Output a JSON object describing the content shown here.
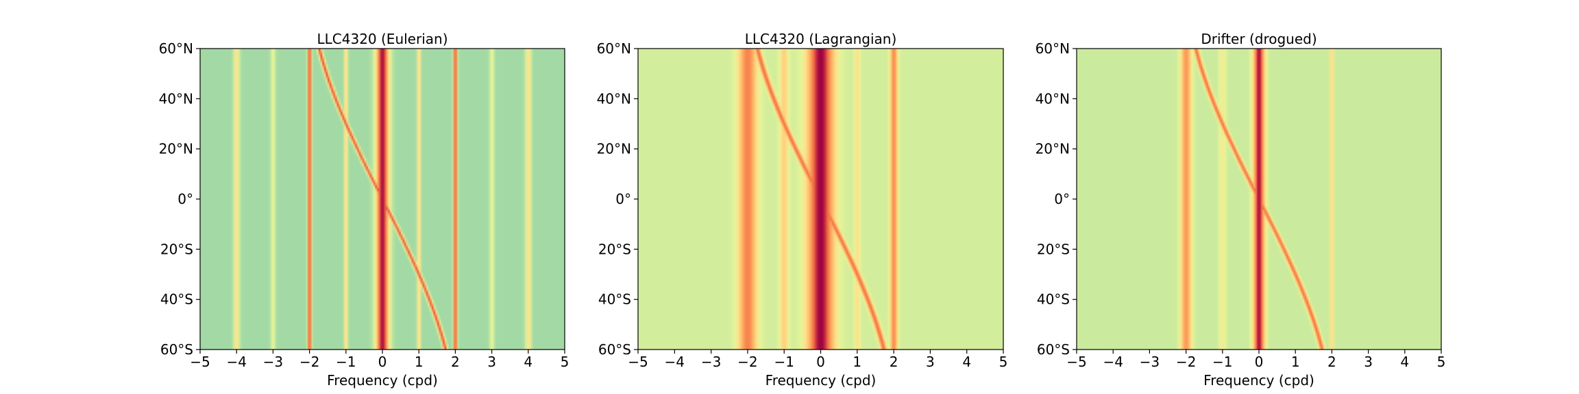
{
  "chart_data": [
    {
      "type": "heatmap",
      "title": "LLC4320 (Eulerian)",
      "xlabel": "Frequency (cpd)",
      "ylabel": "",
      "xlim": [
        -5,
        5
      ],
      "ylim": [
        -60,
        60
      ],
      "x_ticks": [
        -5,
        -4,
        -3,
        -2,
        -1,
        0,
        1,
        2,
        3,
        4,
        5
      ],
      "x_tick_labels": [
        "−5",
        "−4",
        "−3",
        "−2",
        "−1",
        "0",
        "1",
        "2",
        "3",
        "4",
        "5"
      ],
      "y_ticks": [
        60,
        40,
        20,
        0,
        -20,
        -40,
        -60
      ],
      "y_tick_labels": [
        "60°N",
        "40°N",
        "20°N",
        "0°",
        "20°S",
        "40°S",
        "60°S"
      ],
      "colormap": "Spectral_r",
      "background_level": 0.28,
      "ridges": [
        {
          "kind": "vertical",
          "x": 0,
          "width": 0.18,
          "level": 0.98
        },
        {
          "kind": "vertical",
          "x": -2,
          "width": 0.05,
          "level": 0.95
        },
        {
          "kind": "vertical",
          "x": 2,
          "width": 0.05,
          "level": 0.95
        },
        {
          "kind": "vertical",
          "x": -1,
          "width": 0.05,
          "level": 0.6
        },
        {
          "kind": "vertical",
          "x": 1,
          "width": 0.05,
          "level": 0.6
        },
        {
          "kind": "vertical",
          "x": -4,
          "width": 0.08,
          "level": 0.55
        },
        {
          "kind": "vertical",
          "x": 4,
          "width": 0.08,
          "level": 0.55
        },
        {
          "kind": "vertical",
          "x": -3,
          "width": 0.07,
          "level": 0.45
        },
        {
          "kind": "vertical",
          "x": 3,
          "width": 0.07,
          "level": 0.45
        },
        {
          "kind": "inertial",
          "width": 0.06,
          "level": 0.9
        }
      ]
    },
    {
      "type": "heatmap",
      "title": "LLC4320 (Lagrangian)",
      "xlabel": "Frequency (cpd)",
      "ylabel": "",
      "xlim": [
        -5,
        5
      ],
      "ylim": [
        -60,
        60
      ],
      "x_ticks": [
        -5,
        -4,
        -3,
        -2,
        -1,
        0,
        1,
        2,
        3,
        4,
        5
      ],
      "x_tick_labels": [
        "−5",
        "−4",
        "−3",
        "−2",
        "−1",
        "0",
        "1",
        "2",
        "3",
        "4",
        "5"
      ],
      "y_ticks": [
        60,
        40,
        20,
        0,
        -20,
        -40,
        -60
      ],
      "y_tick_labels": [
        "60°N",
        "40°N",
        "20°N",
        "0°",
        "20°S",
        "40°S",
        "60°S"
      ],
      "colormap": "Spectral_r",
      "background_level": 0.4,
      "ridges": [
        {
          "kind": "vertical",
          "x": 0,
          "width": 0.35,
          "level": 1.0
        },
        {
          "kind": "vertical",
          "x": -2,
          "width": 0.25,
          "level": 0.8
        },
        {
          "kind": "vertical",
          "x": 2,
          "width": 0.1,
          "level": 0.78
        },
        {
          "kind": "vertical",
          "x": -1,
          "width": 0.12,
          "level": 0.6
        },
        {
          "kind": "vertical",
          "x": 1,
          "width": 0.08,
          "level": 0.55
        },
        {
          "kind": "inertial",
          "width": 0.08,
          "level": 0.85
        }
      ]
    },
    {
      "type": "heatmap",
      "title": "Drifter (drogued)",
      "xlabel": "Frequency (cpd)",
      "ylabel": "",
      "xlim": [
        -5,
        5
      ],
      "ylim": [
        -60,
        60
      ],
      "x_ticks": [
        -5,
        -4,
        -3,
        -2,
        -1,
        0,
        1,
        2,
        3,
        4,
        5
      ],
      "x_tick_labels": [
        "−5",
        "−4",
        "−3",
        "−2",
        "−1",
        "0",
        "1",
        "2",
        "3",
        "4",
        "5"
      ],
      "y_ticks": [
        60,
        40,
        20,
        0,
        -20,
        -40,
        -60
      ],
      "y_tick_labels": [
        "60°N",
        "40°N",
        "20°N",
        "0°",
        "20°S",
        "40°S",
        "60°S"
      ],
      "colormap": "Spectral_r",
      "background_level": 0.38,
      "ridges": [
        {
          "kind": "vertical",
          "x": 0,
          "width": 0.15,
          "level": 0.98
        },
        {
          "kind": "vertical",
          "x": -2,
          "width": 0.15,
          "level": 0.75
        },
        {
          "kind": "vertical",
          "x": 2,
          "width": 0.05,
          "level": 0.6
        },
        {
          "kind": "vertical",
          "x": -1,
          "width": 0.1,
          "level": 0.5
        },
        {
          "kind": "inertial",
          "width": 0.07,
          "level": 0.85
        }
      ]
    }
  ]
}
